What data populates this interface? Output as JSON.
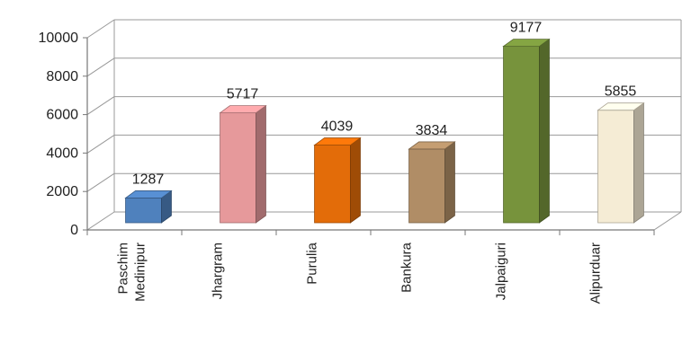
{
  "chart_data": {
    "type": "bar",
    "style": "3d-column",
    "categories": [
      "Paschim Medinipur",
      "Jhargram",
      "Purulia",
      "Bankura",
      "Jalpaiguri",
      "Alipurduar"
    ],
    "category_lines": [
      [
        "Paschim",
        "Medinipur"
      ],
      [
        "Jhargram"
      ],
      [
        "Purulia"
      ],
      [
        "Bankura"
      ],
      [
        "Jalpaiguri"
      ],
      [
        "Alipurduar"
      ]
    ],
    "values": [
      1287,
      5717,
      4039,
      3834,
      9177,
      5855
    ],
    "data_labels": [
      "1287",
      "5717",
      "4039",
      "3834",
      "9177",
      "5855"
    ],
    "colors": [
      "#4f81bd",
      "#e6999b",
      "#e36c09",
      "#b08d66",
      "#77933c",
      "#f5ecd5"
    ],
    "ylim": [
      0,
      10000
    ],
    "yticks": [
      0,
      2000,
      4000,
      6000,
      8000,
      10000
    ],
    "ytick_labels": [
      "0",
      "2000",
      "4000",
      "6000",
      "8000",
      "10000"
    ],
    "grid": true,
    "legend": "none",
    "title": "",
    "xlabel": "",
    "ylabel": ""
  }
}
